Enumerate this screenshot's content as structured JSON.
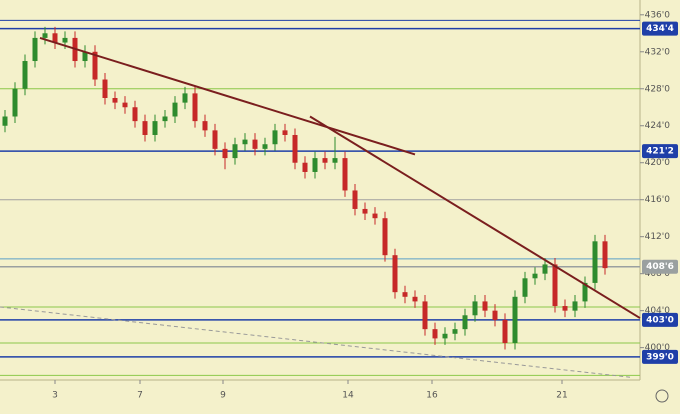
{
  "chart_data": {
    "type": "candlestick",
    "x": [
      0,
      1,
      2,
      3,
      4,
      5,
      6,
      7,
      8,
      9,
      10,
      11,
      12,
      13,
      14,
      15,
      16,
      17,
      18,
      19,
      20,
      21,
      22,
      23,
      24,
      25,
      26,
      27,
      28,
      29,
      30,
      31,
      32,
      33,
      34,
      35,
      36,
      37,
      38,
      39,
      40,
      41,
      42,
      43,
      44,
      45,
      46,
      47,
      48,
      49,
      50,
      51,
      52,
      53,
      54,
      55,
      56,
      57,
      58,
      59,
      60
    ],
    "open": [
      424,
      425,
      428,
      431,
      433.5,
      434,
      433,
      433.5,
      431,
      432,
      429,
      427,
      426.5,
      426,
      424.5,
      423,
      424.5,
      425,
      426.5,
      427.5,
      424.5,
      423.5,
      421.5,
      420.5,
      422,
      422.5,
      421.5,
      422,
      423.5,
      423,
      420,
      419,
      420.5,
      420,
      420.5,
      417,
      415,
      414.5,
      414,
      410,
      406,
      405.5,
      405,
      402,
      401,
      401.5,
      402,
      403.5,
      405,
      404,
      403,
      400.5,
      405.5,
      407.5,
      408,
      409,
      404.5,
      404,
      405,
      407,
      411.5
    ],
    "high": [
      425.7,
      428.7,
      431.7,
      434.2,
      434.7,
      434.7,
      434.2,
      434.2,
      432.7,
      432.7,
      429.7,
      427.7,
      427.2,
      426.7,
      425.2,
      425.2,
      425.7,
      427.2,
      428.2,
      428.2,
      425.2,
      424.2,
      422.2,
      422.7,
      423.2,
      423.2,
      422.7,
      424.2,
      424.2,
      423.7,
      420.7,
      421.2,
      421.2,
      422.8,
      421.2,
      417.7,
      415.7,
      415.2,
      414.7,
      410.7,
      406.7,
      406.2,
      405.7,
      402.7,
      402.2,
      402.7,
      404.2,
      405.7,
      405.7,
      404.7,
      403.7,
      406.2,
      408.2,
      408.7,
      409.7,
      409.7,
      405.2,
      405.7,
      407.7,
      412.2,
      412.2
    ],
    "low": [
      423.3,
      424.3,
      427.3,
      430.3,
      432.8,
      432.3,
      432.3,
      430.3,
      430.3,
      428.3,
      426.3,
      425.8,
      425.3,
      423.8,
      422.3,
      422.3,
      423.8,
      424.3,
      425.8,
      423.8,
      422.8,
      420.8,
      419.3,
      419.8,
      421.3,
      420.8,
      420.8,
      421.3,
      422.3,
      419.3,
      418.3,
      418.3,
      419.3,
      419.3,
      416.3,
      414.3,
      413.8,
      413.3,
      409.3,
      405.3,
      404.8,
      404.3,
      401.3,
      400.3,
      400.3,
      400.8,
      401.3,
      402.8,
      403.3,
      402.3,
      399.8,
      399.8,
      404.8,
      406.8,
      407.3,
      403.8,
      403.3,
      403.3,
      404.3,
      406.3,
      407.9
    ],
    "close": [
      425,
      428,
      431,
      433.5,
      434,
      433,
      433.5,
      431,
      432,
      429,
      427,
      426.5,
      426,
      424.5,
      423,
      424.5,
      425,
      426.5,
      427.5,
      424.5,
      423.5,
      421.5,
      420.5,
      422,
      422.5,
      421.5,
      422,
      423.5,
      423,
      420,
      419,
      420.5,
      420,
      420.5,
      417,
      415,
      414.5,
      414,
      410,
      406,
      405.5,
      405,
      402,
      401,
      401.5,
      402,
      403.5,
      405,
      404,
      403,
      400.5,
      405.5,
      407.5,
      408,
      409,
      404.5,
      404,
      405,
      407,
      411.5,
      408.6
    ],
    "up_color": "#2e8b2e",
    "down_color": "#c62828",
    "xlim": [
      0,
      64
    ],
    "ylim": [
      396.5,
      437.6
    ],
    "xticks": [
      {
        "value": 5.5,
        "label": "3"
      },
      {
        "value": 14,
        "label": "7"
      },
      {
        "value": 22.3,
        "label": "9"
      },
      {
        "value": 34.8,
        "label": "14"
      },
      {
        "value": 43.2,
        "label": "16"
      },
      {
        "value": 56.2,
        "label": "21"
      }
    ],
    "yticks": [
      {
        "value": 436,
        "label": "436'0"
      },
      {
        "value": 432,
        "label": "432'0"
      },
      {
        "value": 428,
        "label": "428'0"
      },
      {
        "value": 424,
        "label": "424'0"
      },
      {
        "value": 420,
        "label": "420'0"
      },
      {
        "value": 416,
        "label": "416'0"
      },
      {
        "value": 412,
        "label": "412'0"
      },
      {
        "value": 408,
        "label": "408'0"
      },
      {
        "value": 404,
        "label": "404'0"
      },
      {
        "value": 400,
        "label": "400'0"
      }
    ],
    "levels": [
      {
        "value": 434.5,
        "label": "434'4",
        "color": "#1f3fa8"
      },
      {
        "value": 421.25,
        "label": "421'2",
        "color": "#1f3fa8"
      },
      {
        "value": 408.75,
        "label": "408'6",
        "color": "#9aa0a0"
      },
      {
        "value": 403,
        "label": "403'0",
        "color": "#1f3fa8"
      },
      {
        "value": 399,
        "label": "399'0",
        "color": "#1f3fa8"
      }
    ],
    "lines": [
      {
        "value": 435.4,
        "color": "#1f3fa8"
      },
      {
        "value": 428,
        "color": "#8cc84b"
      },
      {
        "value": 416,
        "color": "#a0a0a0"
      },
      {
        "value": 409.6,
        "color": "#5aa0c8"
      },
      {
        "value": 404.4,
        "color": "#8cc84b"
      },
      {
        "value": 400.5,
        "color": "#8cc84b"
      },
      {
        "value": 397,
        "color": "#8cc84b"
      }
    ],
    "trendlines": [
      {
        "x": [
          4,
          41.5
        ],
        "y": [
          433.5,
          420.9
        ],
        "color": "#7a1e1e"
      },
      {
        "x": [
          31,
          64
        ],
        "y": [
          425,
          403.2
        ],
        "color": "#7a1e1e"
      },
      {
        "x": [
          0,
          63
        ],
        "y": [
          404.4,
          396.8
        ],
        "color": "#999999"
      }
    ]
  }
}
